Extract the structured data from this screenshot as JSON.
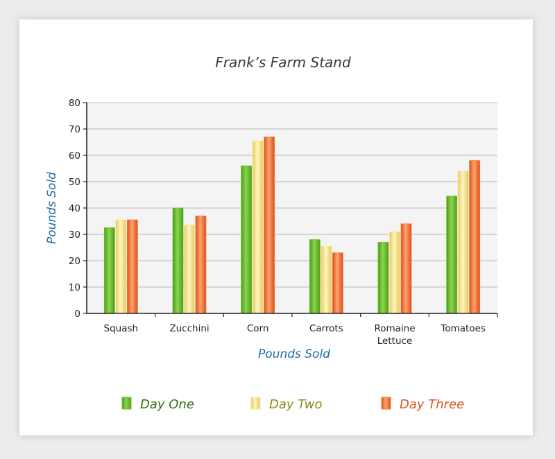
{
  "chart_data": {
    "type": "bar",
    "title": "Frank’s Farm Stand",
    "xlabel": "Pounds Sold",
    "ylabel": "Pounds Sold",
    "ylim": [
      0,
      80
    ],
    "yticks": [
      0,
      10,
      20,
      30,
      40,
      50,
      60,
      70,
      80
    ],
    "grid": true,
    "legend_position": "bottom",
    "categories": [
      "Squash",
      "Zucchini",
      "Corn",
      "Carrots",
      "Romaine Lettuce",
      "Tomatoes"
    ],
    "series": [
      {
        "name": "Day One",
        "color": "#6cc02f",
        "text_color": "#2f6e15",
        "values": [
          32.5,
          40,
          56,
          28,
          27,
          44.5
        ]
      },
      {
        "name": "Day Two",
        "color": "#fbe694",
        "text_color": "#8a8a1a",
        "values": [
          35.5,
          33.5,
          65.5,
          25.5,
          31,
          54
        ]
      },
      {
        "name": "Day Three",
        "color": "#f77a3e",
        "text_color": "#e0561e",
        "values": [
          35.5,
          37,
          67,
          23,
          34,
          58
        ]
      }
    ]
  }
}
